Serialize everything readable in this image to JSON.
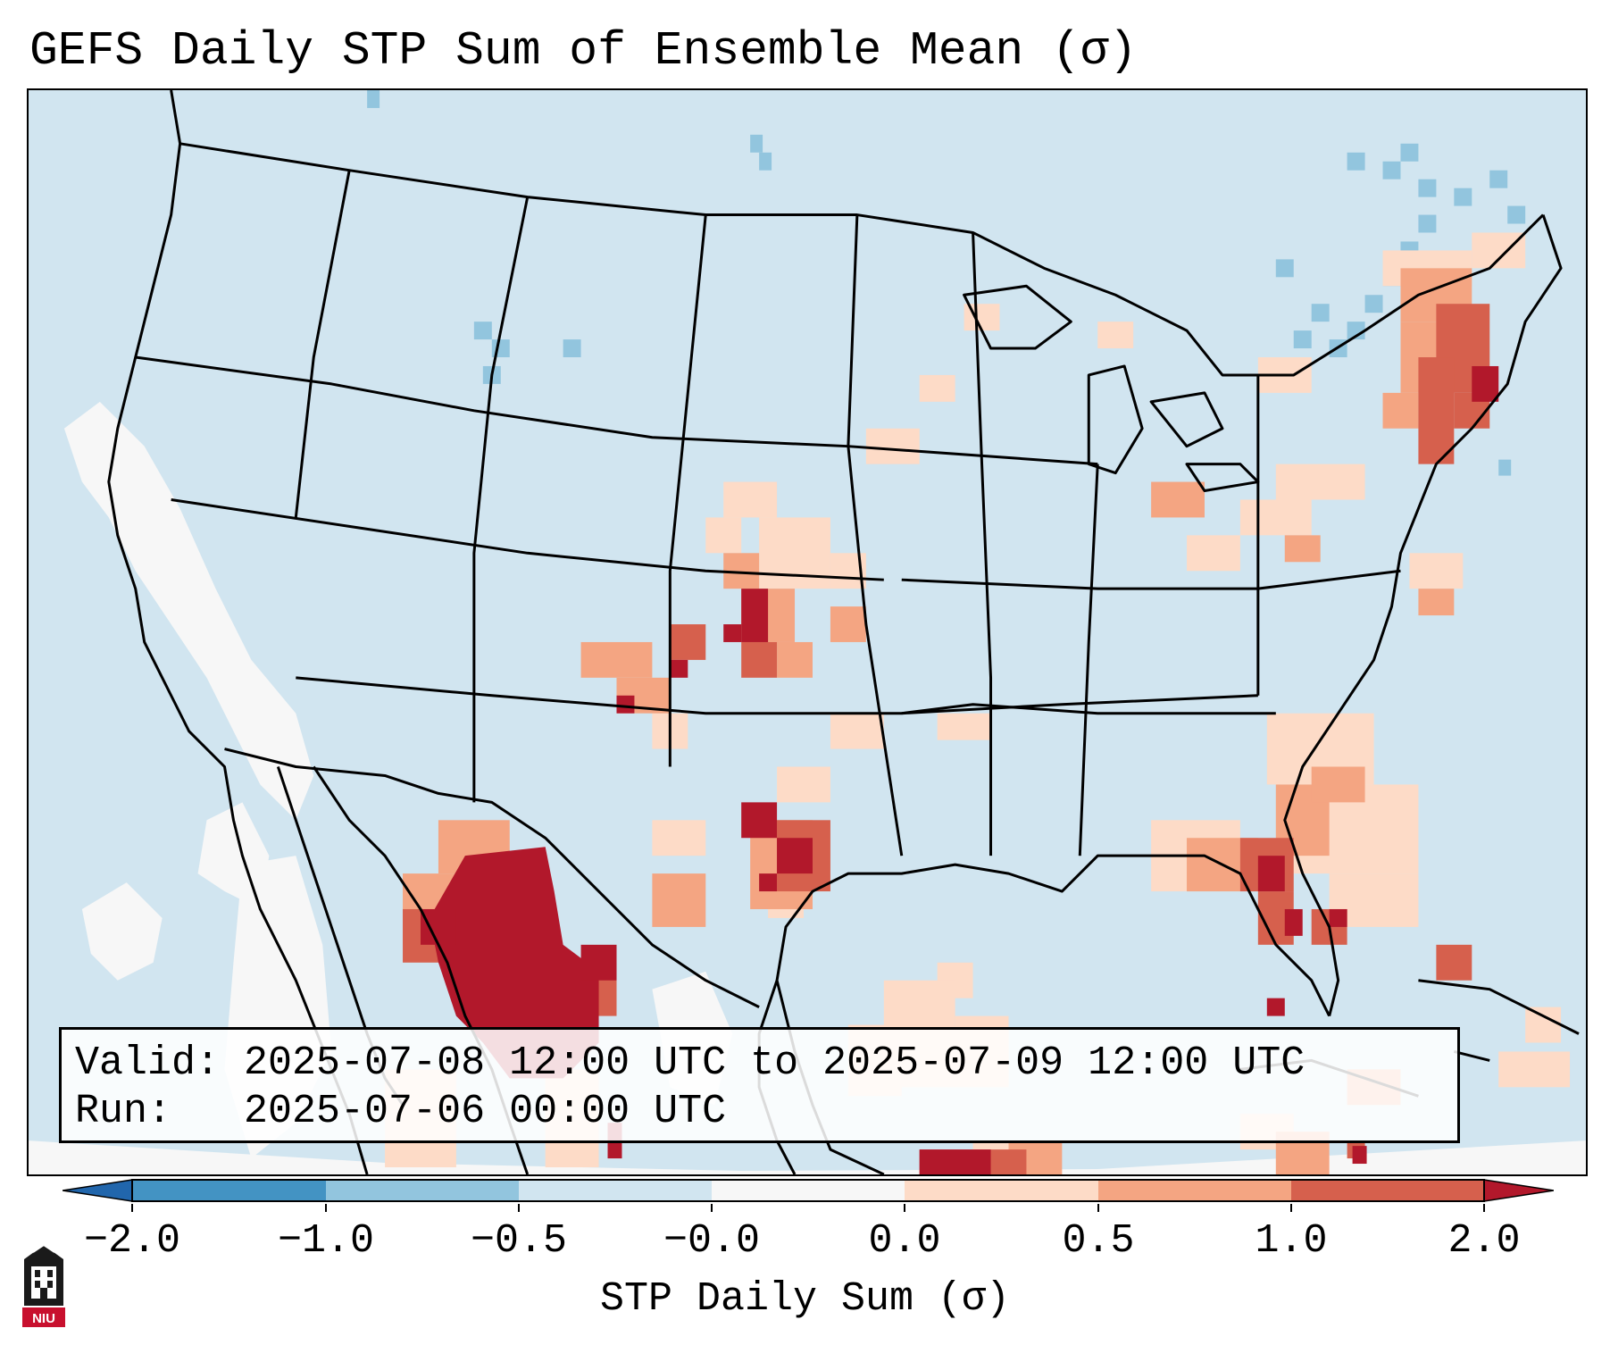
{
  "title": "GEFS Daily STP Sum of Ensemble Mean (σ)",
  "info": {
    "valid_line": "Valid: 2025-07-08 12:00 UTC to 2025-07-09 12:00 UTC",
    "run_line": "Run:   2025-07-06 00:00 UTC"
  },
  "colorbar": {
    "title": "STP Daily Sum (σ)",
    "tick_labels": [
      "−2.0",
      "−1.0",
      "−0.5",
      "−0.0",
      "0.0",
      "0.5",
      "1.0",
      "2.0"
    ],
    "bins": [
      {
        "range": "< -2.0",
        "color": "#2166ac"
      },
      {
        "range": "-2.0 to -1.0",
        "color": "#4393c3"
      },
      {
        "range": "-1.0 to -0.5",
        "color": "#92c5de"
      },
      {
        "range": "-0.5 to -0.0",
        "color": "#d1e5f0"
      },
      {
        "range": "-0.0 to 0.0",
        "color": "#f7f7f7"
      },
      {
        "range": "0.0 to 0.5",
        "color": "#fddbc7"
      },
      {
        "range": "0.5 to 1.0",
        "color": "#f4a582"
      },
      {
        "range": "1.0 to 2.0",
        "color": "#d6604d"
      },
      {
        "range": "> 2.0",
        "color": "#b2182b"
      }
    ]
  },
  "map": {
    "projection": "Lambert conformal, CONUS",
    "background_color": "#d1e5f0",
    "regions": [
      {
        "name": "southwest-mexico-max",
        "level": "> 2.0"
      },
      {
        "name": "texas-central",
        "level": "1.0 to 2.0"
      },
      {
        "name": "kansas-colorado",
        "level": "0.5 to 2.0"
      },
      {
        "name": "new-england",
        "level": "1.0 to 2.0"
      },
      {
        "name": "florida",
        "level": "1.0 to 2.0"
      },
      {
        "name": "canada-quebec",
        "level": "-1.0 to -0.5"
      },
      {
        "name": "california-coast",
        "level": "-0.0 to 0.0"
      }
    ]
  },
  "logo": {
    "label": "NIU"
  }
}
